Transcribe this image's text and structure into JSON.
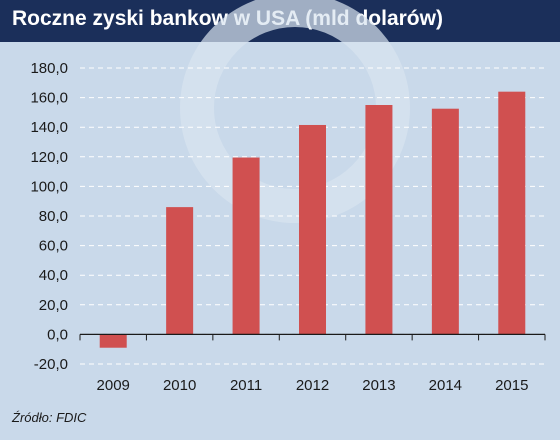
{
  "header": {
    "title": "Roczne zyski bankow w USA (mld dolarów)"
  },
  "source": "Źródło: FDIC",
  "colors": {
    "header_bg": "#1b2f5a",
    "background": "#c9d9ea",
    "bar": "#d05050",
    "watermark": "#d8e4f0"
  },
  "chart_data": {
    "type": "bar",
    "title": "Roczne zyski bankow w USA (mld dolarów)",
    "xlabel": "",
    "ylabel": "",
    "categories": [
      "2009",
      "2010",
      "2011",
      "2012",
      "2013",
      "2014",
      "2015"
    ],
    "values": [
      -9.0,
      86.0,
      119.5,
      141.5,
      155.0,
      152.5,
      164.0
    ],
    "ylim": [
      -20,
      180
    ],
    "yticks": [
      "-20,0",
      "0,0",
      "20,0",
      "40,0",
      "60,0",
      "80,0",
      "100,0",
      "120,0",
      "140,0",
      "160,0",
      "180,0"
    ],
    "grid": true,
    "legend": "none"
  }
}
